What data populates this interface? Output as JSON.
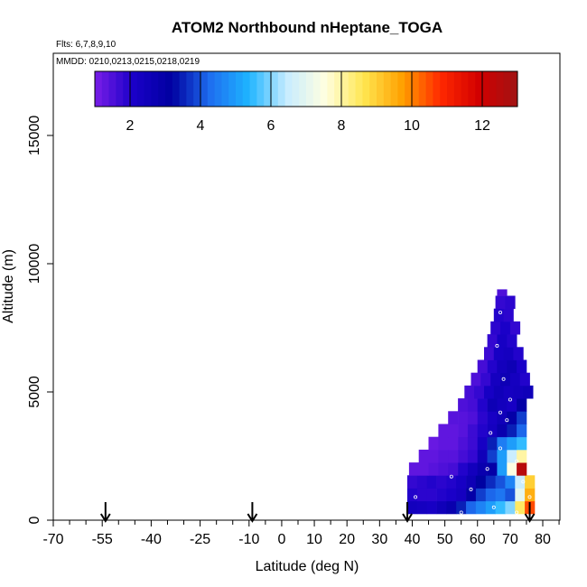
{
  "chart_data": {
    "type": "heatmap",
    "title": "ATOM2 Northbound nHeptane_TOGA",
    "flights_label": "Flts: 6,7,8,9,10",
    "dates_label": "MMDD: 0210,0213,0215,0218,0219",
    "xlabel": "Latitude (deg N)",
    "ylabel": "Altitude (m)",
    "xlim": [
      -70,
      85
    ],
    "ylim": [
      0,
      17500
    ],
    "x_ticks": [
      -70,
      -55,
      -40,
      -25,
      -10,
      0,
      10,
      20,
      30,
      40,
      50,
      60,
      70,
      80
    ],
    "y_ticks": [
      0,
      5000,
      10000,
      15000
    ],
    "colorbar": {
      "range": [
        1,
        13
      ],
      "ticks": [
        2,
        4,
        6,
        8,
        10,
        12
      ],
      "colors": [
        "#7a1ee8",
        "#1a00c8",
        "#0000a0",
        "#1e6ef0",
        "#1eb4ff",
        "#c8ecff",
        "#ffffe0",
        "#ffe650",
        "#ffa000",
        "#ff2800",
        "#d20000",
        "#a01414"
      ]
    },
    "arrows_at_latitude": [
      -54,
      -9,
      38.5,
      76
    ],
    "grid": false,
    "rows": [
      {
        "alt": [
          250,
          750
        ],
        "x0": 38.5,
        "values": [
          2.4,
          2.3,
          2.2,
          2.5,
          2.8,
          3.5,
          4.2,
          4.6,
          5.0,
          5.5,
          6.0,
          8.5,
          10.5
        ]
      },
      {
        "alt": [
          750,
          1250
        ],
        "x0": 38.5,
        "values": [
          2.0,
          1.9,
          1.9,
          2.0,
          2.1,
          2.3,
          3.0,
          3.8,
          4.2,
          4.4,
          4.0,
          7.0,
          9.5
        ]
      },
      {
        "alt": [
          1250,
          1750
        ],
        "x0": 38.5,
        "values": [
          1.8,
          1.9,
          2.0,
          1.9,
          2.0,
          2.2,
          2.6,
          3.2,
          3.6,
          4.0,
          4.6,
          6.5,
          9.0
        ]
      },
      {
        "alt": [
          1750,
          2250
        ],
        "x0": 39,
        "values": [
          1.3,
          1.3,
          1.4,
          1.5,
          1.6,
          2.0,
          2.4,
          2.8,
          3.0,
          5.0,
          7.5,
          12.5
        ]
      },
      {
        "alt": [
          2250,
          2750
        ],
        "x0": 42,
        "values": [
          1.3,
          1.3,
          1.4,
          1.4,
          1.6,
          1.8,
          2.5,
          3.8,
          5.0,
          6.5,
          8.0
        ]
      },
      {
        "alt": [
          2750,
          3250
        ],
        "x0": 45,
        "values": [
          1.2,
          1.3,
          1.3,
          1.5,
          1.7,
          2.2,
          3.5,
          4.5,
          5.0,
          5.5
        ]
      },
      {
        "alt": [
          3250,
          3750
        ],
        "x0": 48,
        "values": [
          1.3,
          1.3,
          1.4,
          1.7,
          2.0,
          2.3,
          2.8,
          3.5,
          4.2
        ]
      },
      {
        "alt": [
          3750,
          4250
        ],
        "x0": 51,
        "values": [
          1.4,
          1.4,
          1.5,
          1.9,
          2.2,
          2.5,
          3.0,
          3.8
        ]
      },
      {
        "alt": [
          4250,
          4750
        ],
        "x0": 54,
        "values": [
          1.5,
          1.6,
          2.0,
          2.6,
          2.4,
          2.2,
          3.0
        ]
      },
      {
        "alt": [
          4750,
          5250
        ],
        "x0": 56,
        "values": [
          1.6,
          1.8,
          2.2,
          2.5,
          2.3,
          2.4,
          2.5
        ]
      },
      {
        "alt": [
          5250,
          5750
        ],
        "x0": 58,
        "values": [
          1.5,
          1.8,
          2.3,
          2.6,
          2.3,
          2.0
        ]
      },
      {
        "alt": [
          5750,
          6250
        ],
        "x0": 60,
        "values": [
          1.6,
          2.0,
          2.4,
          2.6,
          2.1
        ]
      },
      {
        "alt": [
          6250,
          6750
        ],
        "x0": 62,
        "values": [
          1.7,
          2.2,
          2.3,
          2.0
        ]
      },
      {
        "alt": [
          6750,
          7250
        ],
        "x0": 63,
        "values": [
          1.8,
          2.2,
          2.0
        ]
      },
      {
        "alt": [
          7250,
          7750
        ],
        "x0": 64,
        "values": [
          1.9,
          2.1,
          1.8
        ]
      },
      {
        "alt": [
          7750,
          8250
        ],
        "x0": 65,
        "values": [
          2.0,
          1.9
        ]
      },
      {
        "alt": [
          8250,
          8750
        ],
        "x0": 65.5,
        "values": [
          1.8,
          1.9
        ]
      },
      {
        "alt": [
          8750,
          9000
        ],
        "x0": 66,
        "values": [
          1.5
        ]
      }
    ],
    "samples": [
      {
        "x": 52,
        "y": 1700
      },
      {
        "x": 58,
        "y": 1200
      },
      {
        "x": 65,
        "y": 500
      },
      {
        "x": 67,
        "y": 2800
      },
      {
        "x": 64,
        "y": 3400
      },
      {
        "x": 67,
        "y": 4200
      },
      {
        "x": 70,
        "y": 4700
      },
      {
        "x": 68,
        "y": 5500
      },
      {
        "x": 66,
        "y": 6800
      },
      {
        "x": 67,
        "y": 8100
      },
      {
        "x": 72,
        "y": 2300
      },
      {
        "x": 74,
        "y": 1500
      },
      {
        "x": 76,
        "y": 900
      },
      {
        "x": 63,
        "y": 2000
      },
      {
        "x": 69,
        "y": 3900
      },
      {
        "x": 41,
        "y": 900
      },
      {
        "x": 55,
        "y": 300
      },
      {
        "x": 72,
        "y": 300
      }
    ]
  }
}
